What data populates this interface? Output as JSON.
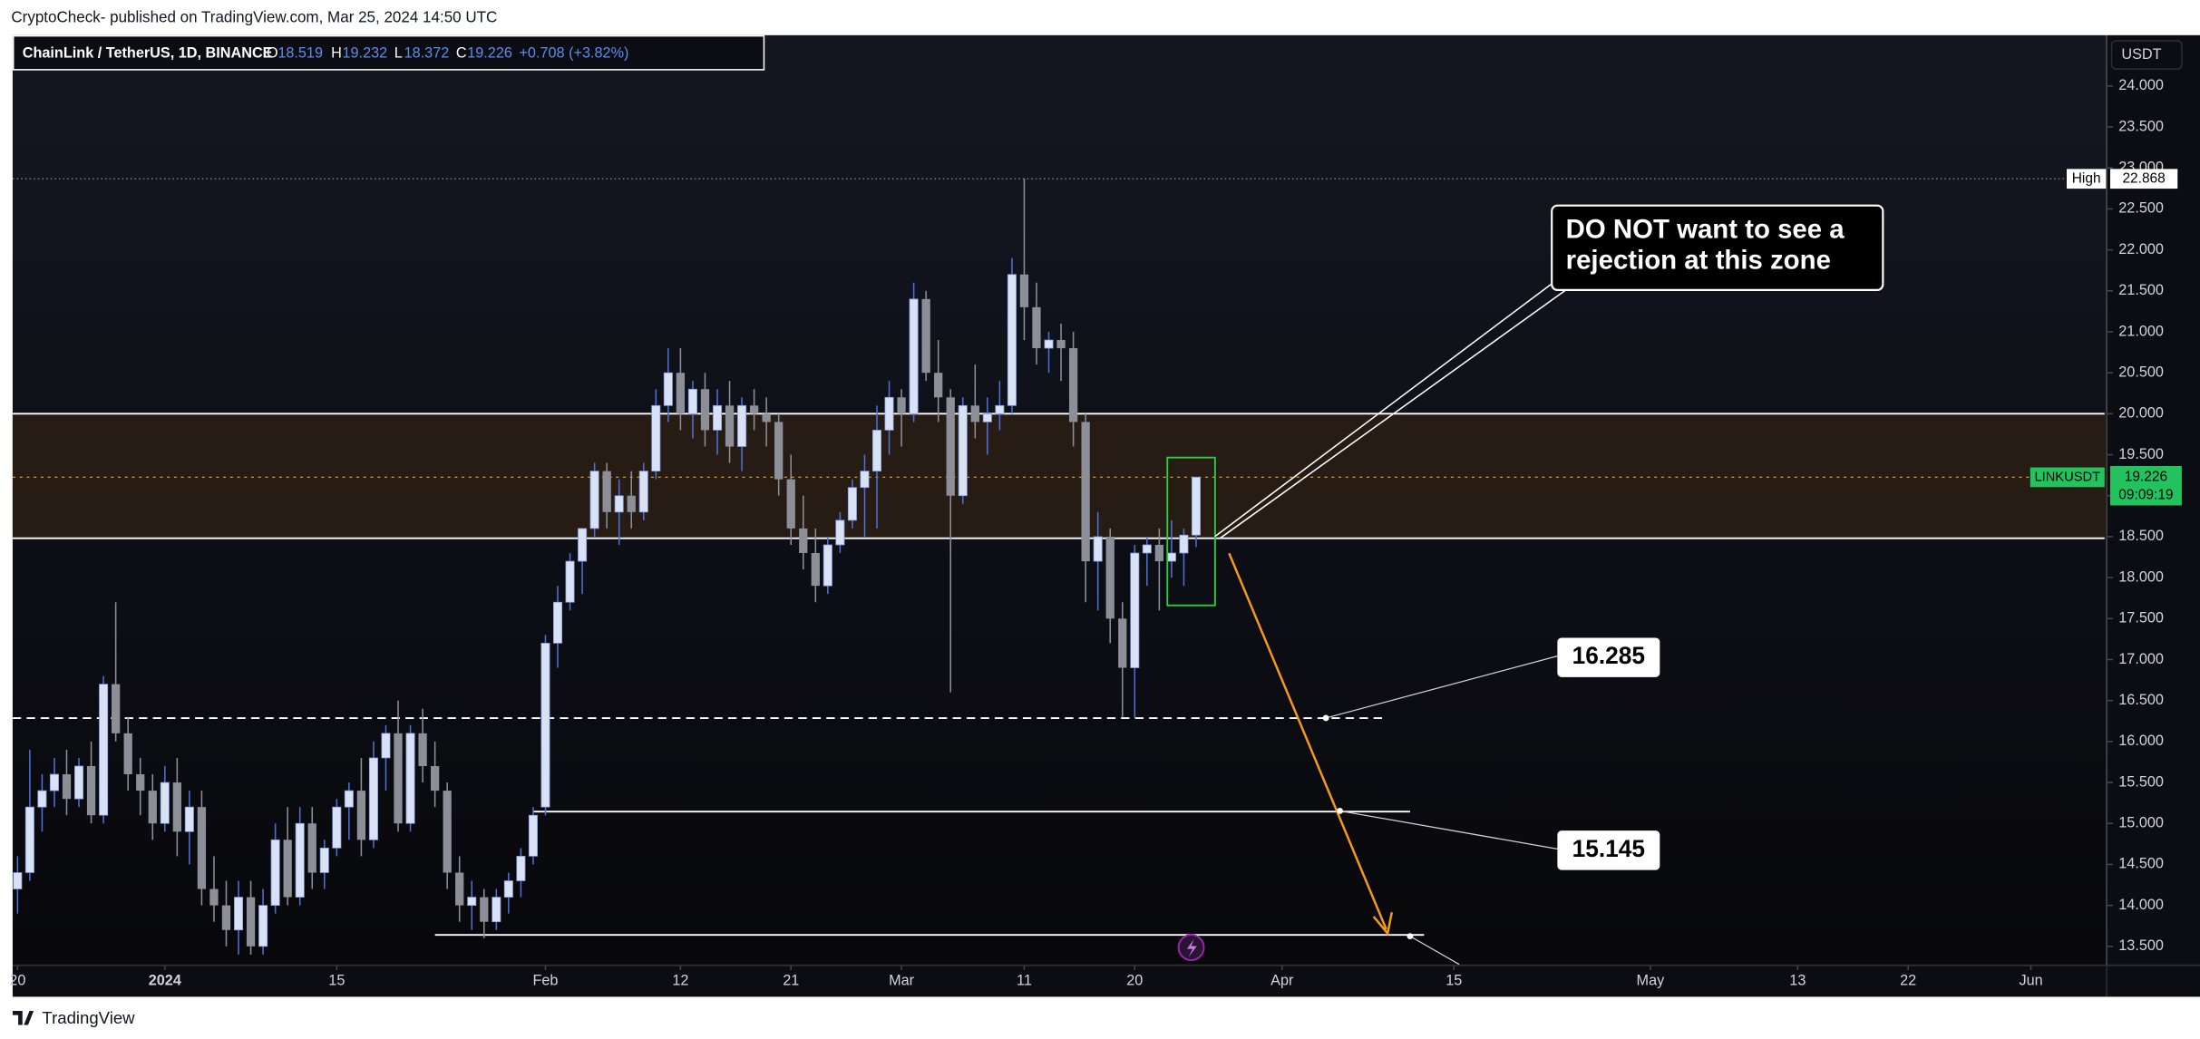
{
  "header": {
    "text": "CryptoCheck- published on TradingView.com, Mar 25, 2024 14:50 UTC"
  },
  "footer": {
    "text": "TradingView"
  },
  "chart_data": {
    "type": "candlestick",
    "symbol": "ChainLink / TetherUS, 1D, BINANCE",
    "legend_keys": [
      "O",
      "H",
      "L",
      "C"
    ],
    "change": "+0.708 (+3.82%)",
    "currency": "USDT",
    "high_label": "High",
    "price_label": "LINKUSDT",
    "countdown": "09:09:19",
    "up_color": "#d9e2f5",
    "down_color": "#8c8f97",
    "grid": false,
    "x": [
      -12,
      -11,
      -10,
      -9,
      -8,
      -7,
      -6,
      -5,
      -4,
      -3,
      -2,
      -1,
      0,
      1,
      2,
      3,
      4,
      5,
      6,
      7,
      8,
      9,
      10,
      11,
      12,
      13,
      14,
      15,
      16,
      17,
      18,
      19,
      20,
      21,
      22,
      23,
      24,
      25,
      26,
      27,
      28,
      29,
      30,
      31,
      32,
      33,
      34,
      35,
      36,
      37,
      38,
      39,
      40,
      41,
      42,
      43,
      44,
      45,
      46,
      47,
      48,
      49,
      50,
      51,
      52,
      53,
      54,
      55,
      56,
      57,
      58,
      59,
      60,
      61,
      62,
      63,
      64,
      65,
      66,
      67,
      68,
      69,
      70,
      71,
      72,
      73,
      74,
      75,
      76,
      77,
      78,
      79,
      80,
      81,
      82,
      83,
      84
    ],
    "open": [
      14.2,
      14.4,
      15.2,
      15.4,
      15.6,
      15.3,
      15.7,
      15.1,
      16.7,
      16.1,
      15.6,
      15.4,
      15.0,
      15.5,
      14.9,
      15.2,
      14.2,
      14.0,
      13.7,
      14.1,
      13.5,
      14.0,
      14.8,
      14.1,
      15.0,
      14.4,
      14.7,
      15.2,
      15.4,
      14.8,
      15.8,
      16.1,
      15.0,
      16.1,
      15.7,
      15.4,
      14.4,
      14.0,
      14.1,
      13.8,
      14.1,
      14.3,
      14.6,
      15.2,
      17.2,
      17.7,
      18.2,
      18.6,
      19.3,
      18.8,
      19.0,
      18.8,
      19.3,
      20.1,
      20.5,
      20.0,
      20.3,
      19.8,
      20.1,
      19.6,
      20.1,
      20.0,
      19.9,
      19.2,
      18.6,
      18.3,
      17.9,
      18.4,
      18.7,
      19.1,
      19.3,
      19.8,
      20.2,
      20.0,
      21.4,
      20.5,
      20.2,
      19.0,
      20.1,
      19.9,
      20.0,
      20.1,
      21.7,
      21.3,
      20.8,
      20.9,
      20.8,
      19.9,
      18.2,
      18.5,
      17.5,
      16.9,
      18.3,
      18.4,
      18.2,
      18.3,
      18.519
    ],
    "high": [
      14.6,
      15.9,
      15.6,
      15.8,
      15.9,
      15.8,
      16.0,
      16.8,
      17.7,
      16.3,
      15.8,
      15.6,
      15.7,
      15.8,
      15.4,
      15.4,
      14.6,
      14.3,
      14.3,
      14.3,
      14.2,
      15.0,
      15.2,
      15.2,
      15.2,
      14.8,
      15.3,
      15.5,
      15.8,
      16.0,
      16.2,
      16.5,
      16.2,
      16.4,
      16.0,
      15.5,
      14.6,
      14.3,
      14.2,
      14.2,
      14.4,
      14.7,
      15.2,
      17.3,
      17.9,
      18.3,
      18.6,
      19.4,
      19.4,
      19.2,
      19.3,
      19.4,
      20.3,
      20.8,
      20.8,
      20.4,
      20.5,
      20.3,
      20.4,
      20.2,
      20.3,
      20.2,
      20.0,
      19.5,
      19.0,
      18.6,
      18.5,
      18.8,
      19.2,
      19.5,
      20.1,
      20.4,
      20.3,
      21.6,
      21.5,
      20.9,
      20.3,
      20.2,
      20.6,
      20.2,
      20.4,
      21.9,
      22.868,
      21.6,
      21.0,
      21.1,
      21.0,
      20.0,
      18.8,
      18.6,
      17.7,
      18.4,
      18.5,
      18.6,
      18.7,
      18.6,
      19.232
    ],
    "low": [
      13.9,
      14.3,
      14.9,
      15.2,
      15.1,
      15.2,
      15.0,
      15.0,
      16.0,
      15.4,
      15.1,
      14.8,
      14.9,
      14.6,
      14.5,
      14.0,
      13.8,
      13.5,
      13.4,
      13.4,
      13.4,
      13.9,
      14.0,
      14.0,
      14.2,
      14.2,
      14.6,
      14.8,
      14.6,
      14.7,
      15.4,
      14.9,
      14.9,
      15.5,
      15.2,
      14.2,
      13.8,
      13.7,
      13.6,
      13.7,
      13.9,
      14.1,
      14.5,
      15.1,
      16.9,
      17.6,
      17.8,
      18.5,
      18.6,
      18.4,
      18.6,
      18.7,
      19.2,
      19.9,
      19.8,
      19.7,
      19.6,
      19.5,
      19.4,
      19.3,
      19.8,
      19.6,
      19.0,
      18.4,
      18.1,
      17.7,
      17.8,
      18.3,
      18.6,
      18.5,
      18.6,
      19.5,
      19.6,
      19.9,
      20.4,
      19.9,
      16.6,
      18.9,
      19.7,
      19.5,
      19.8,
      20.0,
      20.9,
      20.6,
      20.5,
      20.4,
      19.6,
      17.7,
      17.6,
      17.2,
      16.3,
      16.285,
      17.9,
      17.6,
      18.0,
      17.9,
      18.372
    ],
    "close": [
      14.4,
      15.2,
      15.4,
      15.6,
      15.3,
      15.7,
      15.1,
      16.7,
      16.1,
      15.6,
      15.4,
      15.0,
      15.5,
      14.9,
      15.2,
      14.2,
      14.0,
      13.7,
      14.1,
      13.5,
      14.0,
      14.8,
      14.1,
      15.0,
      14.4,
      14.7,
      15.2,
      15.4,
      14.8,
      15.8,
      16.1,
      15.0,
      16.1,
      15.7,
      15.4,
      14.4,
      14.0,
      14.1,
      13.8,
      14.1,
      14.3,
      14.6,
      15.1,
      17.2,
      17.7,
      18.2,
      18.6,
      19.3,
      18.8,
      19.0,
      18.8,
      19.3,
      20.1,
      20.5,
      20.0,
      20.3,
      19.8,
      20.1,
      19.6,
      20.1,
      20.0,
      19.9,
      19.2,
      18.6,
      18.3,
      17.9,
      18.4,
      18.7,
      19.1,
      19.3,
      19.8,
      20.2,
      20.0,
      21.4,
      20.5,
      20.2,
      19.0,
      20.1,
      19.9,
      20.0,
      20.1,
      21.7,
      21.3,
      20.8,
      20.9,
      20.8,
      19.9,
      18.2,
      18.5,
      17.5,
      16.9,
      18.3,
      18.4,
      18.2,
      18.3,
      18.519,
      19.226
    ],
    "xlim": [
      -12.4,
      158
    ],
    "xticks": [
      {
        "value": -12,
        "label": "20"
      },
      {
        "value": 0,
        "label": "2024"
      },
      {
        "value": 14,
        "label": "15"
      },
      {
        "value": 31,
        "label": "Feb"
      },
      {
        "value": 42,
        "label": "12"
      },
      {
        "value": 51,
        "label": "21"
      },
      {
        "value": 60,
        "label": "Mar"
      },
      {
        "value": 70,
        "label": "11"
      },
      {
        "value": 79,
        "label": "20"
      },
      {
        "value": 91,
        "label": "Apr"
      },
      {
        "value": 105,
        "label": "15"
      },
      {
        "value": 121,
        "label": "May"
      },
      {
        "value": 133,
        "label": "13"
      },
      {
        "value": 142,
        "label": "22"
      },
      {
        "value": 152,
        "label": "Jun"
      }
    ],
    "ylim": [
      13.28,
      24.62
    ],
    "yticks": [
      {
        "value": 13.5,
        "label": "13.500"
      },
      {
        "value": 14,
        "label": "14.000"
      },
      {
        "value": 14.5,
        "label": "14.500"
      },
      {
        "value": 15,
        "label": "15.000"
      },
      {
        "value": 15.5,
        "label": "15.500"
      },
      {
        "value": 16,
        "label": "16.000"
      },
      {
        "value": 16.5,
        "label": "16.500"
      },
      {
        "value": 17,
        "label": "17.000"
      },
      {
        "value": 17.5,
        "label": "17.500"
      },
      {
        "value": 18,
        "label": "18.000"
      },
      {
        "value": 18.5,
        "label": "18.500"
      },
      {
        "value": 19,
        "label": "19.000"
      },
      {
        "value": 19.5,
        "label": "19.500"
      },
      {
        "value": 20,
        "label": "20.000"
      },
      {
        "value": 20.5,
        "label": "20.500"
      },
      {
        "value": 21,
        "label": "21.000"
      },
      {
        "value": 21.5,
        "label": "21.500"
      },
      {
        "value": 22,
        "label": "22.000"
      },
      {
        "value": 22.5,
        "label": "22.500"
      },
      {
        "value": 23,
        "label": "23.000"
      },
      {
        "value": 23.5,
        "label": "23.500"
      },
      {
        "value": 24,
        "label": "24.000"
      }
    ],
    "zone": [
      18.48,
      20.0
    ],
    "support": 13.64,
    "annotations": [
      {
        "lines": [
          "DO NOT want to see a",
          "rejection at this zone"
        ]
      },
      {
        "value": 16.285
      },
      {
        "value": 15.145
      }
    ]
  }
}
